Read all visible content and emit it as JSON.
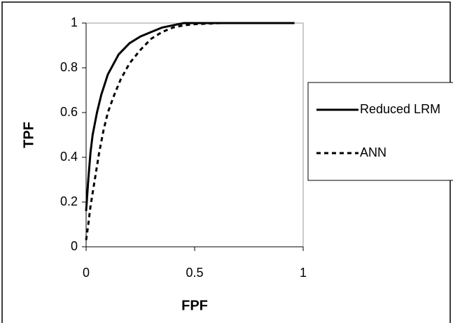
{
  "chart_data": {
    "type": "line",
    "xlabel": "FPF",
    "ylabel": "TPF",
    "xlim": [
      0,
      1
    ],
    "ylim": [
      0,
      1
    ],
    "xticks": [
      0,
      0.5,
      1
    ],
    "yticks": [
      0,
      0.2,
      0.4,
      0.6,
      0.8,
      1
    ],
    "legend": "right",
    "series": [
      {
        "name": "Reduced LRM",
        "color": "#000000",
        "dash": "solid",
        "x": [
          0,
          0.01,
          0.02,
          0.03,
          0.05,
          0.07,
          0.1,
          0.15,
          0.2,
          0.25,
          0.3,
          0.35,
          0.4,
          0.45,
          0.5,
          0.96
        ],
        "values": [
          0.16,
          0.3,
          0.42,
          0.5,
          0.6,
          0.68,
          0.77,
          0.86,
          0.91,
          0.94,
          0.96,
          0.98,
          0.99,
          1,
          1,
          1
        ]
      },
      {
        "name": "ANN",
        "color": "#000000",
        "dash": "dashed",
        "x": [
          0,
          0.01,
          0.02,
          0.04,
          0.06,
          0.08,
          0.1,
          0.13,
          0.16,
          0.2,
          0.25,
          0.3,
          0.35,
          0.4,
          0.45,
          0.5,
          0.62
        ],
        "values": [
          0.03,
          0.1,
          0.18,
          0.3,
          0.42,
          0.52,
          0.6,
          0.68,
          0.75,
          0.82,
          0.88,
          0.93,
          0.96,
          0.98,
          0.99,
          0.995,
          1
        ]
      }
    ]
  }
}
